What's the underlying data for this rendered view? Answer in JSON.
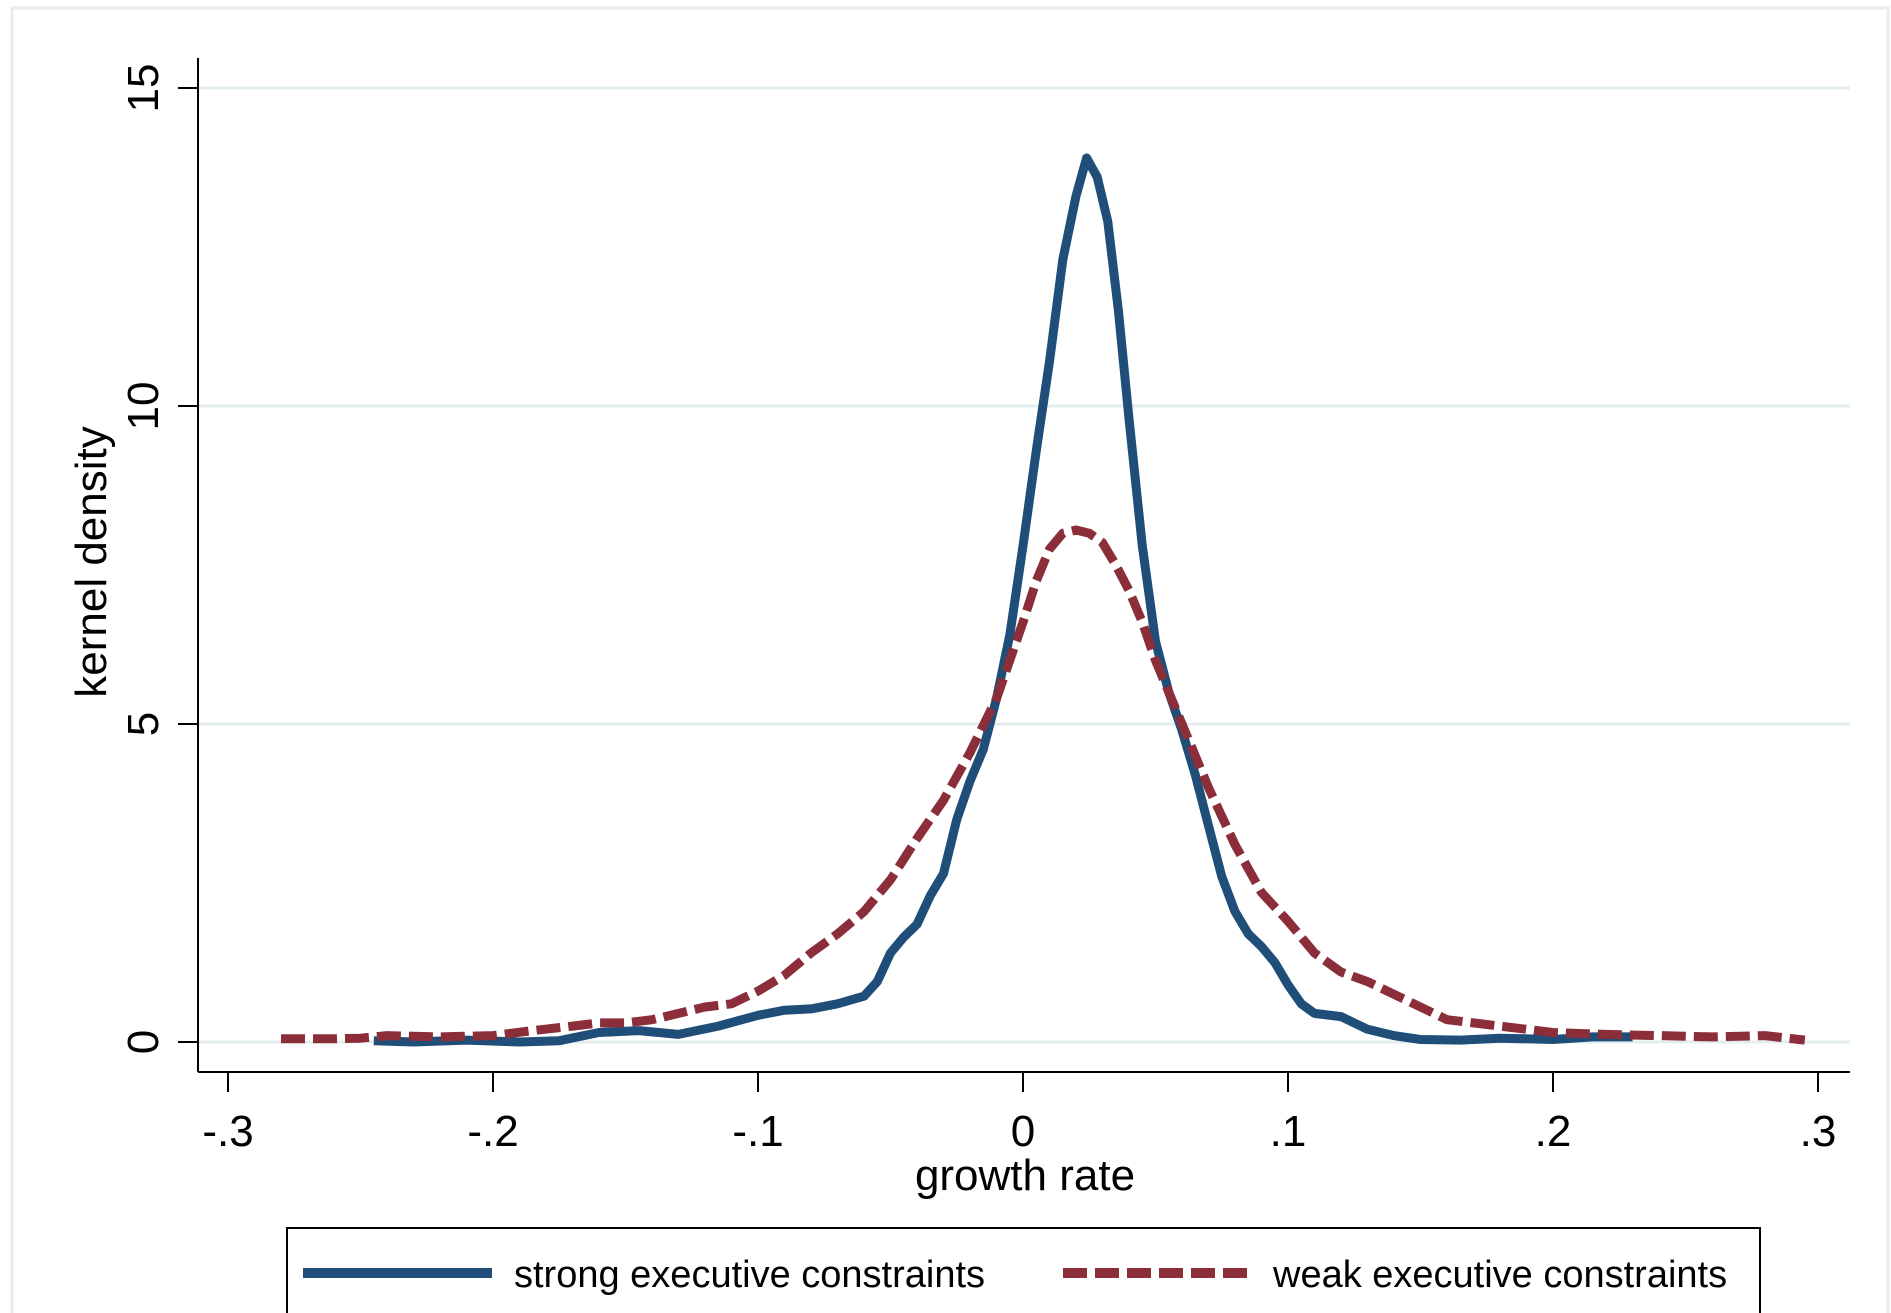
{
  "chart_data": {
    "type": "line",
    "title": "",
    "xlabel": "growth rate",
    "ylabel": "kernel density",
    "xlim": [
      -0.3,
      0.3
    ],
    "ylim": [
      0,
      15
    ],
    "x_ticks": [
      -0.3,
      -0.2,
      -0.1,
      0,
      0.1,
      0.2,
      0.3
    ],
    "x_tick_labels": [
      "-.3",
      "-.2",
      "-.1",
      "0",
      ".1",
      ".2",
      ".3"
    ],
    "y_ticks": [
      0,
      5,
      10,
      15
    ],
    "y_tick_labels": [
      "0",
      "5",
      "10",
      "15"
    ],
    "grid": "horizontal",
    "legend_position": "bottom",
    "series": [
      {
        "name": "strong executive constraints",
        "color": "#1f4e79",
        "style": "solid",
        "points": [
          [
            -0.245,
            0.02
          ],
          [
            -0.23,
            0.0
          ],
          [
            -0.21,
            0.03
          ],
          [
            -0.19,
            0.0
          ],
          [
            -0.175,
            0.02
          ],
          [
            -0.16,
            0.15
          ],
          [
            -0.145,
            0.18
          ],
          [
            -0.13,
            0.12
          ],
          [
            -0.115,
            0.25
          ],
          [
            -0.1,
            0.42
          ],
          [
            -0.09,
            0.5
          ],
          [
            -0.08,
            0.52
          ],
          [
            -0.07,
            0.6
          ],
          [
            -0.06,
            0.72
          ],
          [
            -0.055,
            0.95
          ],
          [
            -0.05,
            1.4
          ],
          [
            -0.045,
            1.65
          ],
          [
            -0.04,
            1.85
          ],
          [
            -0.035,
            2.3
          ],
          [
            -0.03,
            2.65
          ],
          [
            -0.025,
            3.5
          ],
          [
            -0.02,
            4.1
          ],
          [
            -0.015,
            4.6
          ],
          [
            -0.01,
            5.4
          ],
          [
            -0.005,
            6.4
          ],
          [
            0.0,
            7.8
          ],
          [
            0.005,
            9.3
          ],
          [
            0.01,
            10.7
          ],
          [
            0.015,
            12.3
          ],
          [
            0.02,
            13.3
          ],
          [
            0.024,
            13.9
          ],
          [
            0.028,
            13.6
          ],
          [
            0.032,
            12.9
          ],
          [
            0.036,
            11.5
          ],
          [
            0.04,
            9.8
          ],
          [
            0.045,
            7.8
          ],
          [
            0.05,
            6.3
          ],
          [
            0.055,
            5.5
          ],
          [
            0.06,
            4.9
          ],
          [
            0.065,
            4.2
          ],
          [
            0.07,
            3.4
          ],
          [
            0.075,
            2.6
          ],
          [
            0.08,
            2.05
          ],
          [
            0.085,
            1.7
          ],
          [
            0.09,
            1.5
          ],
          [
            0.095,
            1.25
          ],
          [
            0.1,
            0.9
          ],
          [
            0.105,
            0.6
          ],
          [
            0.11,
            0.45
          ],
          [
            0.12,
            0.4
          ],
          [
            0.13,
            0.2
          ],
          [
            0.14,
            0.1
          ],
          [
            0.15,
            0.04
          ],
          [
            0.165,
            0.03
          ],
          [
            0.18,
            0.06
          ],
          [
            0.2,
            0.04
          ],
          [
            0.215,
            0.08
          ],
          [
            0.23,
            0.08
          ]
        ]
      },
      {
        "name": "weak executive constraints",
        "color": "#8b2e3a",
        "style": "dashed",
        "points": [
          [
            -0.28,
            0.05
          ],
          [
            -0.26,
            0.05
          ],
          [
            -0.25,
            0.06
          ],
          [
            -0.24,
            0.1
          ],
          [
            -0.22,
            0.08
          ],
          [
            -0.2,
            0.1
          ],
          [
            -0.185,
            0.18
          ],
          [
            -0.17,
            0.25
          ],
          [
            -0.16,
            0.3
          ],
          [
            -0.15,
            0.3
          ],
          [
            -0.14,
            0.35
          ],
          [
            -0.13,
            0.45
          ],
          [
            -0.12,
            0.55
          ],
          [
            -0.11,
            0.6
          ],
          [
            -0.1,
            0.8
          ],
          [
            -0.09,
            1.05
          ],
          [
            -0.08,
            1.4
          ],
          [
            -0.07,
            1.7
          ],
          [
            -0.06,
            2.05
          ],
          [
            -0.05,
            2.55
          ],
          [
            -0.04,
            3.2
          ],
          [
            -0.03,
            3.8
          ],
          [
            -0.02,
            4.55
          ],
          [
            -0.01,
            5.4
          ],
          [
            0.0,
            6.6
          ],
          [
            0.005,
            7.25
          ],
          [
            0.01,
            7.75
          ],
          [
            0.015,
            8.0
          ],
          [
            0.02,
            8.05
          ],
          [
            0.025,
            8.0
          ],
          [
            0.03,
            7.85
          ],
          [
            0.035,
            7.5
          ],
          [
            0.04,
            7.1
          ],
          [
            0.045,
            6.6
          ],
          [
            0.05,
            6.0
          ],
          [
            0.06,
            5.0
          ],
          [
            0.07,
            4.0
          ],
          [
            0.08,
            3.1
          ],
          [
            0.09,
            2.35
          ],
          [
            0.1,
            1.9
          ],
          [
            0.11,
            1.4
          ],
          [
            0.12,
            1.1
          ],
          [
            0.13,
            0.95
          ],
          [
            0.14,
            0.75
          ],
          [
            0.15,
            0.55
          ],
          [
            0.16,
            0.35
          ],
          [
            0.17,
            0.3
          ],
          [
            0.18,
            0.25
          ],
          [
            0.19,
            0.2
          ],
          [
            0.2,
            0.15
          ],
          [
            0.22,
            0.12
          ],
          [
            0.24,
            0.1
          ],
          [
            0.26,
            0.08
          ],
          [
            0.28,
            0.1
          ],
          [
            0.295,
            0.03
          ]
        ]
      }
    ]
  }
}
